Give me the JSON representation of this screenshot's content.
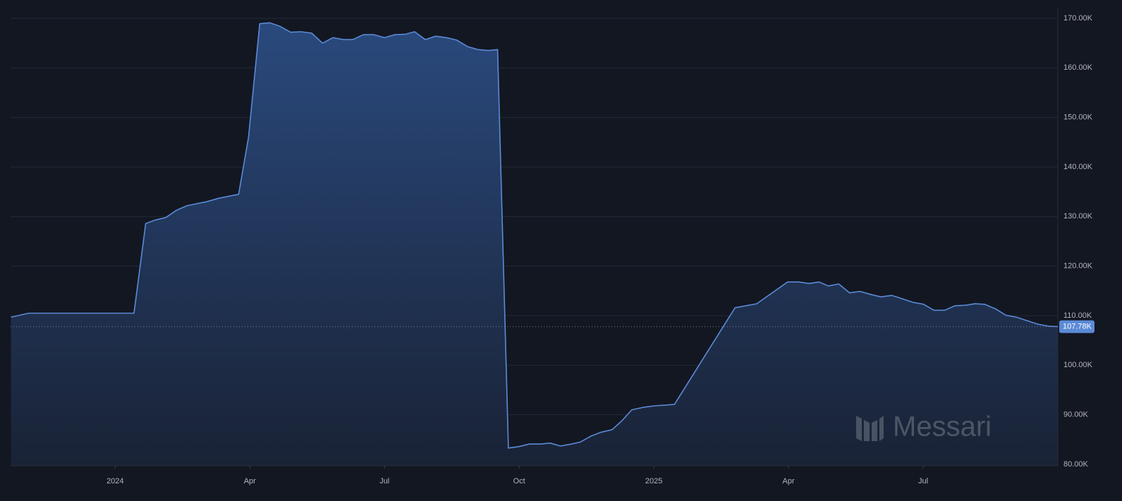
{
  "chart_data": {
    "type": "area",
    "color": "#5b8ad6",
    "grid": true,
    "watermark": "Messari",
    "xlim": [
      -2.33,
      21.0
    ],
    "ylim": [
      80000,
      170000
    ],
    "xticks": [
      {
        "value": 0,
        "label": "2024"
      },
      {
        "value": 3,
        "label": "Apr"
      },
      {
        "value": 6,
        "label": "Jul"
      },
      {
        "value": 9,
        "label": "Oct"
      },
      {
        "value": 12,
        "label": "2025"
      },
      {
        "value": 15,
        "label": "Apr"
      },
      {
        "value": 18,
        "label": "Jul"
      }
    ],
    "yticks": [
      {
        "value": 80000,
        "label": "80.00K"
      },
      {
        "value": 90000,
        "label": "90.00K"
      },
      {
        "value": 100000,
        "label": "100.00K"
      },
      {
        "value": 110000,
        "label": "110.00K"
      },
      {
        "value": 120000,
        "label": "120.00K"
      },
      {
        "value": 130000,
        "label": "130.00K"
      },
      {
        "value": 140000,
        "label": "140.00K"
      },
      {
        "value": 150000,
        "label": "150.00K"
      },
      {
        "value": 160000,
        "label": "160.00K"
      },
      {
        "value": 170000,
        "label": "170.00K"
      }
    ],
    "x": [
      -2.32,
      -1.93,
      0.42,
      0.68,
      0.89,
      1.13,
      1.37,
      1.6,
      2.04,
      2.31,
      2.75,
      2.97,
      3.22,
      3.44,
      3.67,
      3.91,
      4.14,
      4.38,
      4.62,
      4.85,
      5.09,
      5.29,
      5.53,
      5.76,
      6.0,
      6.23,
      6.47,
      6.67,
      6.91,
      7.14,
      7.38,
      7.61,
      7.85,
      8.08,
      8.32,
      8.52,
      8.76,
      9.0,
      9.22,
      9.47,
      9.69,
      9.92,
      10.16,
      10.36,
      10.6,
      10.83,
      11.07,
      11.29,
      11.51,
      11.76,
      12.01,
      12.46,
      13.81,
      14.29,
      14.98,
      15.23,
      15.46,
      15.68,
      15.89,
      16.12,
      16.36,
      16.59,
      16.83,
      17.06,
      17.3,
      17.54,
      17.77,
      18.01,
      18.24,
      18.48,
      18.71,
      18.95,
      19.15,
      19.37,
      19.61,
      19.84,
      20.08,
      20.31,
      20.55,
      20.79,
      21.0
    ],
    "values": [
      109700,
      110500,
      110500,
      128600,
      129300,
      129800,
      131300,
      132200,
      133000,
      133700,
      134500,
      146000,
      168900,
      169100,
      168400,
      167200,
      167300,
      167000,
      165000,
      166100,
      165700,
      165700,
      166700,
      166700,
      166100,
      166700,
      166800,
      167300,
      165700,
      166400,
      166100,
      165600,
      164300,
      163700,
      163500,
      163700,
      83300,
      83600,
      84100,
      84100,
      84300,
      83700,
      84100,
      84500,
      85700,
      86500,
      87000,
      88800,
      91000,
      91500,
      91800,
      92100,
      111600,
      112400,
      116800,
      116800,
      116500,
      116800,
      116000,
      116400,
      114600,
      114900,
      114300,
      113800,
      114100,
      113400,
      112700,
      112300,
      111100,
      111100,
      112000,
      112100,
      112400,
      112300,
      111400,
      110100,
      109700,
      109000,
      108300,
      107900,
      107780
    ],
    "value_labels": [
      null,
      null,
      null,
      null,
      null,
      null,
      null,
      null,
      null,
      null,
      null,
      null,
      null,
      null,
      null,
      null,
      null,
      null,
      null,
      null,
      null,
      null,
      null,
      null,
      null,
      null,
      null,
      null,
      null,
      null,
      null,
      null,
      null,
      null,
      null,
      null,
      null,
      null,
      null,
      null,
      null,
      null,
      null,
      null,
      null,
      null,
      null,
      null,
      null,
      null,
      null,
      null,
      null,
      null,
      null,
      null,
      null,
      null,
      null,
      null,
      null,
      null,
      null,
      null,
      null,
      null,
      null,
      null,
      null,
      null,
      null,
      null,
      null,
      null,
      null,
      null,
      null,
      null,
      null,
      null,
      "107.78K"
    ]
  }
}
